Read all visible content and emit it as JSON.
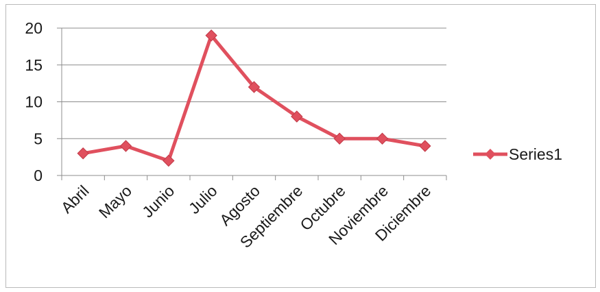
{
  "chart_data": {
    "type": "line",
    "categories": [
      "Abril",
      "Mayo",
      "Junio",
      "Julio",
      "Agosto",
      "Septiembre",
      "Octubre",
      "Noviembre",
      "Diciembre"
    ],
    "series": [
      {
        "name": "Series1",
        "values": [
          3,
          4,
          2,
          19,
          12,
          8,
          5,
          5,
          4
        ],
        "color": "#e0505e"
      }
    ],
    "ylim": [
      0,
      20
    ],
    "yticks": [
      0,
      5,
      10,
      15,
      20
    ],
    "grid": true,
    "legend": "right",
    "marker": "diamond"
  }
}
